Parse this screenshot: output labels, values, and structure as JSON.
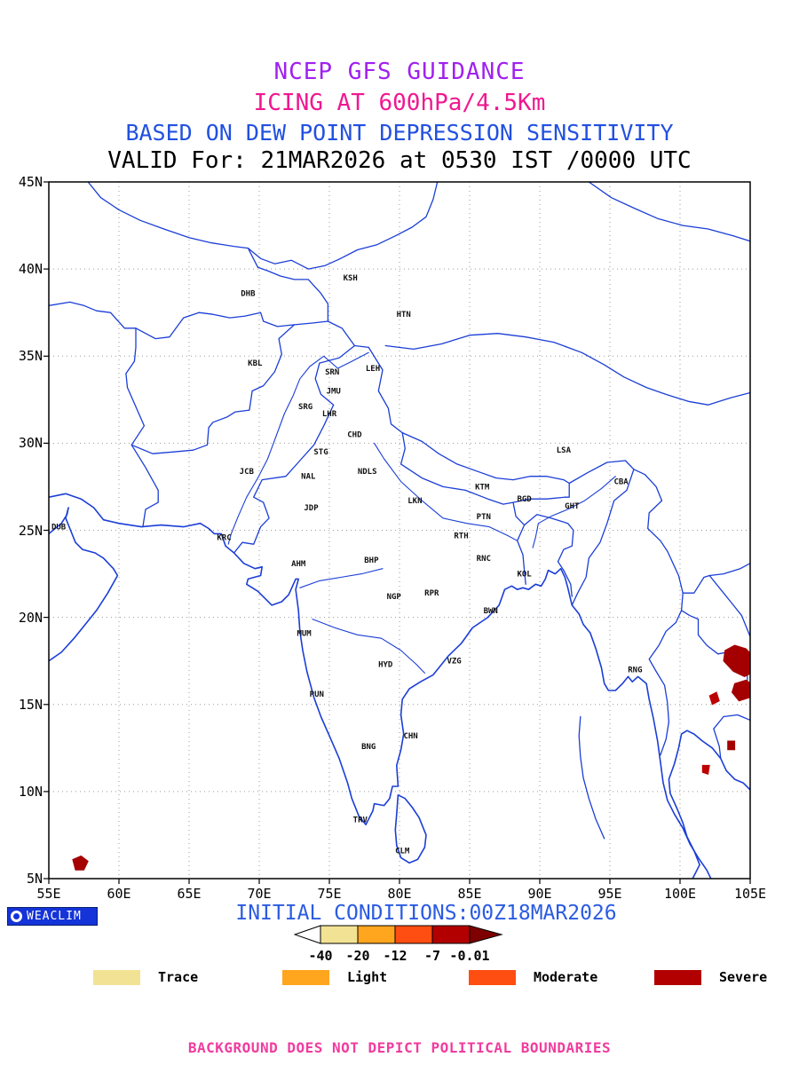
{
  "titles": {
    "line1": "NCEP GFS GUIDANCE",
    "line2": "ICING AT 600hPa/4.5Km",
    "line3": "BASED ON DEW POINT DEPRESSION SENSITIVITY",
    "line4": "VALID For: 21MAR2026 at 0530 IST /0000 UTC"
  },
  "colors": {
    "title_guidance": "#A020F0",
    "title_icing": "#F01890",
    "title_based": "#2250E0",
    "title_valid": "#000000",
    "map_line": "#1B3ED6",
    "grid": "#9A9A9A",
    "frame": "#000000",
    "city_label": "#111111",
    "initial_conditions": "#2B5BE2",
    "footer": "#F03C9E",
    "logo_bg": "#1433D8",
    "logo_text": "#FFFFFF"
  },
  "map": {
    "lon_min": 55,
    "lon_max": 105,
    "lat_min": 5,
    "lat_max": 45,
    "lon_ticks": [
      "55E",
      "60E",
      "65E",
      "70E",
      "75E",
      "80E",
      "85E",
      "90E",
      "95E",
      "100E",
      "105E"
    ],
    "lat_ticks": [
      "45N",
      "40N",
      "35N",
      "30N",
      "25N",
      "20N",
      "15N",
      "10N",
      "5N"
    ],
    "cities": [
      {
        "label": "KSH",
        "lon": 76.5,
        "lat": 39.5
      },
      {
        "label": "DHB",
        "lon": 69.2,
        "lat": 38.6
      },
      {
        "label": "HTN",
        "lon": 80.3,
        "lat": 37.4
      },
      {
        "label": "KBL",
        "lon": 69.7,
        "lat": 34.6
      },
      {
        "label": "SRN",
        "lon": 75.2,
        "lat": 34.1
      },
      {
        "label": "LEH",
        "lon": 78.1,
        "lat": 34.3
      },
      {
        "label": "JMU",
        "lon": 75.3,
        "lat": 33.0
      },
      {
        "label": "SRG",
        "lon": 73.3,
        "lat": 32.1
      },
      {
        "label": "LHR",
        "lon": 75.0,
        "lat": 31.7
      },
      {
        "label": "CHD",
        "lon": 76.8,
        "lat": 30.5
      },
      {
        "label": "STG",
        "lon": 74.4,
        "lat": 29.5
      },
      {
        "label": "LSA",
        "lon": 91.7,
        "lat": 29.6
      },
      {
        "label": "JCB",
        "lon": 69.1,
        "lat": 28.4
      },
      {
        "label": "NAL",
        "lon": 73.5,
        "lat": 28.1
      },
      {
        "label": "NDLS",
        "lon": 77.7,
        "lat": 28.4
      },
      {
        "label": "KTM",
        "lon": 85.9,
        "lat": 27.5
      },
      {
        "label": "CBA",
        "lon": 95.8,
        "lat": 27.8
      },
      {
        "label": "JDP",
        "lon": 73.7,
        "lat": 26.3
      },
      {
        "label": "LKN",
        "lon": 81.1,
        "lat": 26.7
      },
      {
        "label": "BGD",
        "lon": 88.9,
        "lat": 26.8
      },
      {
        "label": "GHT",
        "lon": 92.3,
        "lat": 26.4
      },
      {
        "label": "DUB",
        "lon": 55.7,
        "lat": 25.2
      },
      {
        "label": "PTN",
        "lon": 86.0,
        "lat": 25.8
      },
      {
        "label": "KRC",
        "lon": 67.5,
        "lat": 24.6
      },
      {
        "label": "RTH",
        "lon": 84.4,
        "lat": 24.7
      },
      {
        "label": "AHM",
        "lon": 72.8,
        "lat": 23.1
      },
      {
        "label": "BHP",
        "lon": 78.0,
        "lat": 23.3
      },
      {
        "label": "RNC",
        "lon": 86.0,
        "lat": 23.4
      },
      {
        "label": "KOL",
        "lon": 88.9,
        "lat": 22.5
      },
      {
        "label": "NGP",
        "lon": 79.6,
        "lat": 21.2
      },
      {
        "label": "RPR",
        "lon": 82.3,
        "lat": 21.4
      },
      {
        "label": "BWN",
        "lon": 86.5,
        "lat": 20.4
      },
      {
        "label": "MUM",
        "lon": 73.2,
        "lat": 19.1
      },
      {
        "label": "VZG",
        "lon": 83.9,
        "lat": 17.5
      },
      {
        "label": "HYD",
        "lon": 79.0,
        "lat": 17.3
      },
      {
        "label": "RNG",
        "lon": 96.8,
        "lat": 17.0
      },
      {
        "label": "PUN",
        "lon": 74.1,
        "lat": 15.6
      },
      {
        "label": "CHN",
        "lon": 80.8,
        "lat": 13.2
      },
      {
        "label": "BNG",
        "lon": 77.8,
        "lat": 12.6
      },
      {
        "label": "TRV",
        "lon": 77.2,
        "lat": 8.4
      },
      {
        "label": "CLM",
        "lon": 80.2,
        "lat": 6.6
      }
    ],
    "icing_patches": [
      {
        "name": "severe-laos-north",
        "severity": "severe",
        "color": "#A40000",
        "points": [
          [
            103.2,
            18.1
          ],
          [
            103.9,
            18.4
          ],
          [
            104.7,
            18.2
          ],
          [
            105.3,
            17.7
          ],
          [
            105.3,
            16.9
          ],
          [
            104.6,
            16.6
          ],
          [
            103.8,
            16.9
          ],
          [
            103.1,
            17.5
          ]
        ]
      },
      {
        "name": "severe-laos-south",
        "severity": "severe",
        "color": "#A40000",
        "points": [
          [
            103.9,
            16.2
          ],
          [
            104.7,
            16.4
          ],
          [
            105.2,
            16.1
          ],
          [
            105.0,
            15.4
          ],
          [
            104.2,
            15.2
          ],
          [
            103.7,
            15.7
          ]
        ]
      },
      {
        "name": "severe-thailand-small",
        "severity": "severe",
        "color": "#BD0000",
        "points": [
          [
            102.1,
            15.5
          ],
          [
            102.6,
            15.7
          ],
          [
            102.8,
            15.2
          ],
          [
            102.3,
            15.0
          ]
        ]
      },
      {
        "name": "severe-cambodia-small",
        "severity": "severe",
        "color": "#A40000",
        "points": [
          [
            103.4,
            12.9
          ],
          [
            103.9,
            12.9
          ],
          [
            103.9,
            12.4
          ],
          [
            103.4,
            12.4
          ]
        ]
      },
      {
        "name": "severe-gulf-small",
        "severity": "severe",
        "color": "#BD0000",
        "points": [
          [
            101.6,
            11.5
          ],
          [
            102.1,
            11.5
          ],
          [
            102.0,
            11.0
          ],
          [
            101.6,
            11.1
          ]
        ]
      },
      {
        "name": "severe-arabian-sea",
        "severity": "severe",
        "color": "#A40000",
        "points": [
          [
            56.7,
            6.1
          ],
          [
            57.3,
            6.3
          ],
          [
            57.8,
            6.0
          ],
          [
            57.5,
            5.5
          ],
          [
            56.9,
            5.5
          ]
        ]
      }
    ]
  },
  "branding": {
    "name": "WEACLIM"
  },
  "initial_conditions": "INITIAL CONDITIONS:00Z18MAR2026",
  "scale": {
    "labels": [
      "-40",
      "-20",
      "-12",
      "-7",
      "-0.01"
    ],
    "tail_color": "#FFFFFF",
    "segment_colors": [
      "#F2E394",
      "#FFA51E",
      "#FF4E11",
      "#B20000"
    ],
    "head_color": "#7E0000",
    "outline": "#000000"
  },
  "legend": {
    "items": [
      {
        "label": "Trace",
        "color": "#F2E394"
      },
      {
        "label": "Light",
        "color": "#FFA51E"
      },
      {
        "label": "Moderate",
        "color": "#FF4E11"
      },
      {
        "label": "Severe",
        "color": "#B20000"
      }
    ]
  },
  "footer": "BACKGROUND DOES NOT DEPICT POLITICAL BOUNDARIES"
}
